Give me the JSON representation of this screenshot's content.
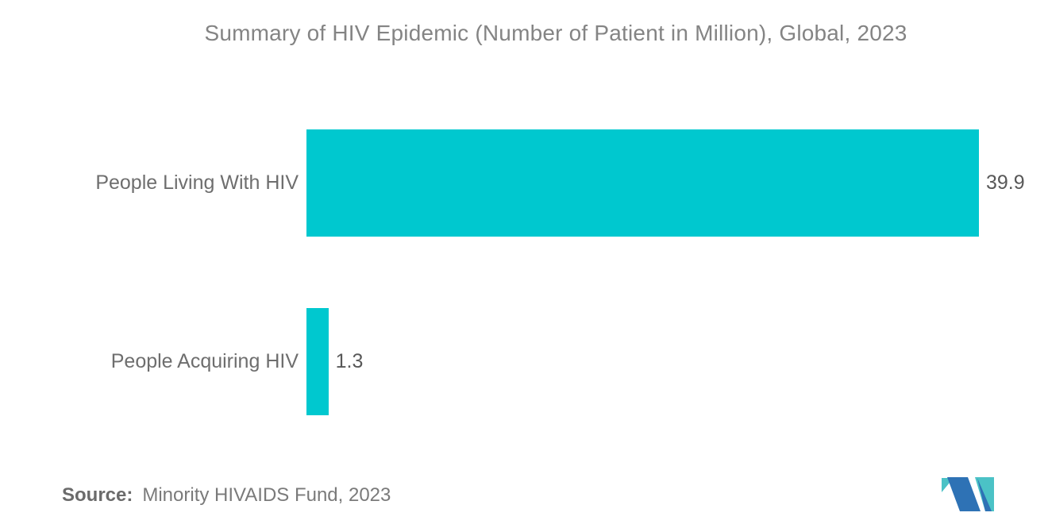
{
  "header": {
    "title": "Summary of HIV Epidemic (Number of Patient in Million), Global, 2023"
  },
  "chart_data": {
    "type": "bar",
    "orientation": "horizontal",
    "title": "Summary of HIV Epidemic (Number of Patient in Million), Global, 2023",
    "categories": [
      "People Living With HIV",
      "People Acquiring HIV"
    ],
    "values": [
      39.9,
      1.3
    ],
    "value_labels": [
      "39.9",
      "1.3"
    ],
    "xlabel": "",
    "ylabel": "",
    "xlim": [
      0,
      44
    ],
    "grid": false,
    "legend": false,
    "bar_color": "#00C8CF"
  },
  "footer": {
    "source_label": "Source:",
    "source_text": "Minority HIVAIDS Fund, 2023"
  },
  "logo": {
    "name": "mordor-intelligence-logo",
    "blue": "#2E72B5",
    "teal": "#4BC2C6"
  }
}
